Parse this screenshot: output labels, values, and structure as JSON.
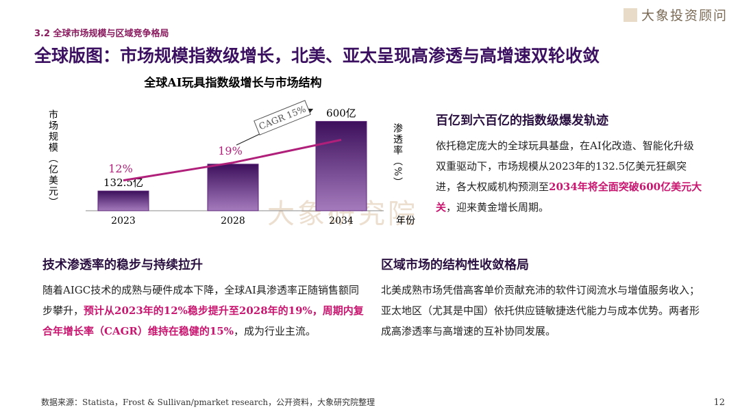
{
  "header": {
    "section": "3.2 全球市场规模与区域竞争格局",
    "title": "全球版图：市场规模指数级增长，北美、亚太呈现高渗透与高增速双轮收敛",
    "logo": "大象投资顾问",
    "watermark": "大象研究院"
  },
  "chart_data": {
    "type": "bar",
    "title": "全球AI玩具指数级增长与市场结构",
    "categories": [
      "2023",
      "2028",
      "2034"
    ],
    "xlabel": "年份",
    "ylabel": "市场规模（亿美元）",
    "y2label": "渗透率（%）",
    "annotation": "CAGR 15%",
    "ylim": [
      0,
      680
    ],
    "y2lim": [
      0,
      40
    ],
    "series": [
      {
        "type": "bar",
        "color": "#5a2477",
        "values": [
          132.5,
          313,
          600
        ],
        "value_labels": [
          "132.5亿",
          null,
          "600亿"
        ]
      },
      {
        "type": "line",
        "axis": "y2",
        "color": "#b0207a",
        "values": [
          12,
          19,
          28
        ],
        "value_labels": [
          "12%",
          "19%",
          null
        ]
      }
    ]
  },
  "sections": [
    {
      "heading": "百亿到六百亿的指数级爆发轨迹",
      "body": [
        {
          "text": "依托稳定庞大的全球玩具基盘，在AI化改造、智能化升级双重驱动下，市场规模从2023年的132.5亿美元狂飙突进，各大权威机构预测至",
          "highlight": false
        },
        {
          "text": "2034年将全面突破600亿美元大关",
          "highlight": true
        },
        {
          "text": "，迎来黄金增长周期。",
          "highlight": false
        }
      ]
    },
    {
      "heading": "技术渗透率的稳步与持续拉升",
      "body": [
        {
          "text": "随着AIGC技术的成熟与硬件成本下降，全球AI具渗透率正随销售额同步攀升，",
          "highlight": false
        },
        {
          "text": "预计从2023年的12%稳步提升至2028年的19%，周期内复合年增长率（CAGR）维持在稳健的15%",
          "highlight": true
        },
        {
          "text": "，成为行业主流。",
          "highlight": false
        }
      ]
    },
    {
      "heading": "区域市场的结构性收敛格局",
      "body": [
        {
          "text": "北美成熟市场凭借高客单价贡献充沛的软件订阅流水与增值服务收入；亚太地区（尤其是中国）依托供应链敏捷迭代能力与成本优势。两者形成高渗透率与高增速的互补协同发展。",
          "highlight": false
        }
      ]
    }
  ],
  "footer": {
    "source": "数据来源：Statista，Frost & Sullivan/pmarket research，公开资料，大象研究院整理",
    "page": "12"
  }
}
